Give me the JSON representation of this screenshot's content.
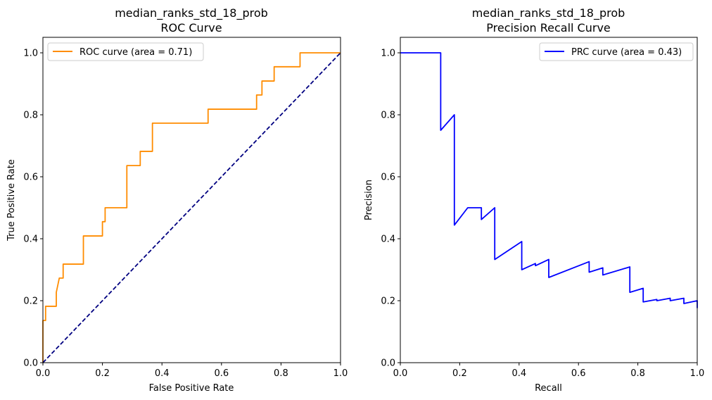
{
  "chart_data": [
    {
      "type": "line",
      "title": "median_ranks_std_18_prob",
      "subtitle": "ROC Curve",
      "xlabel": "False Positive Rate",
      "ylabel": "True Positive Rate",
      "xlim": [
        0.0,
        1.0
      ],
      "ylim": [
        0.0,
        1.05
      ],
      "xticks": [
        "0.0",
        "0.2",
        "0.4",
        "0.6",
        "0.8",
        "1.0"
      ],
      "yticks": [
        "0.0",
        "0.2",
        "0.4",
        "0.6",
        "0.8",
        "1.0"
      ],
      "grid": false,
      "legend_position": "upper left",
      "series": [
        {
          "name": "ROC curve (area = 0.71)",
          "color": "#ff8c00",
          "style": "solid",
          "x": [
            0,
            0,
            0.009,
            0.009,
            0.045,
            0.045,
            0.05,
            0.055,
            0.064,
            0.068,
            0.068,
            0.136,
            0.136,
            0.2,
            0.2,
            0.209,
            0.209,
            0.282,
            0.282,
            0.327,
            0.327,
            0.368,
            0.368,
            0.555,
            0.555,
            0.718,
            0.718,
            0.736,
            0.736,
            0.777,
            0.777,
            0.864,
            0.864,
            1.0
          ],
          "y": [
            0,
            0.136,
            0.136,
            0.182,
            0.182,
            0.227,
            0.25,
            0.273,
            0.273,
            0.273,
            0.318,
            0.318,
            0.409,
            0.409,
            0.455,
            0.455,
            0.5,
            0.5,
            0.636,
            0.636,
            0.682,
            0.682,
            0.773,
            0.773,
            0.818,
            0.818,
            0.864,
            0.864,
            0.909,
            0.909,
            0.955,
            0.955,
            1.0,
            1.0
          ]
        },
        {
          "name": "",
          "color": "#000080",
          "style": "dashed",
          "x": [
            0,
            1
          ],
          "y": [
            0,
            1
          ]
        }
      ]
    },
    {
      "type": "line",
      "title": "median_ranks_std_18_prob",
      "subtitle": "Precision Recall Curve",
      "xlabel": "Recall",
      "ylabel": "Precision",
      "xlim": [
        0.0,
        1.0
      ],
      "ylim": [
        0.0,
        1.05
      ],
      "xticks": [
        "0.0",
        "0.2",
        "0.4",
        "0.6",
        "0.8",
        "1.0"
      ],
      "yticks": [
        "0.0",
        "0.2",
        "0.4",
        "0.6",
        "0.8",
        "1.0"
      ],
      "grid": false,
      "legend_position": "upper right",
      "series": [
        {
          "name": "PRC curve (area = 0.43)",
          "color": "#0000ff",
          "style": "solid",
          "x": [
            0,
            0.136,
            0.136,
            0.182,
            0.182,
            0.227,
            0.273,
            0.273,
            0.318,
            0.318,
            0.409,
            0.409,
            0.455,
            0.455,
            0.5,
            0.5,
            0.636,
            0.636,
            0.682,
            0.682,
            0.773,
            0.773,
            0.818,
            0.818,
            0.864,
            0.864,
            0.909,
            0.909,
            0.955,
            0.955,
            1.0,
            1.0
          ],
          "y": [
            1.0,
            1.0,
            0.75,
            0.8,
            0.444,
            0.5,
            0.5,
            0.462,
            0.5,
            0.333,
            0.391,
            0.3,
            0.32,
            0.313,
            0.333,
            0.275,
            0.326,
            0.292,
            0.306,
            0.283,
            0.309,
            0.227,
            0.24,
            0.196,
            0.204,
            0.2,
            0.208,
            0.2,
            0.208,
            0.191,
            0.2,
            0.176
          ]
        }
      ]
    }
  ]
}
